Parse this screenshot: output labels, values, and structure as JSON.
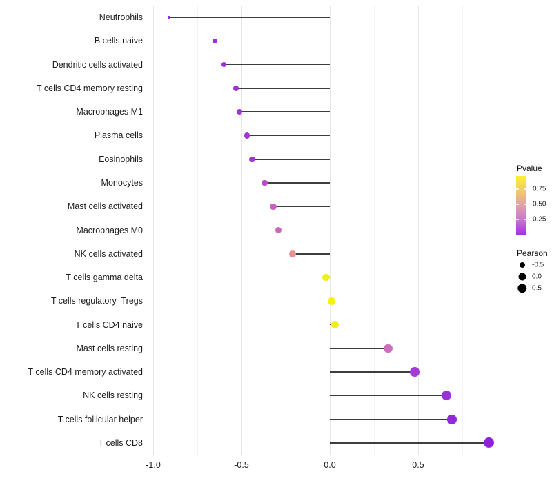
{
  "chart_data": {
    "type": "scatter",
    "variant": "lollipop",
    "title": "",
    "xlabel": "",
    "ylabel": "",
    "xlim": [
      -1.005,
      0.99
    ],
    "grid": "vertical-only",
    "colors": {
      "stem": "#3d3d3d",
      "grid_major": "#e7e7e7",
      "grid_minor": "#f3f3f3",
      "legend_dot": "#000000"
    },
    "x_ticks": [
      {
        "label": "-1.0",
        "value": -1.0
      },
      {
        "label": "-0.5",
        "value": -0.5
      },
      {
        "label": "0.0",
        "value": 0.0
      },
      {
        "label": "0.5",
        "value": 0.5
      }
    ],
    "x_minor": [
      -0.75,
      -0.25,
      0.25,
      0.75
    ],
    "categories": [
      "Neutrophils",
      "B cells naive",
      "Dendritic cells activated",
      "T cells CD4 memory resting",
      "Macrophages M1",
      "Plasma cells",
      "Eosinophils",
      "Monocytes",
      "Mast cells activated",
      "Macrophages M0",
      "NK cells activated",
      "T cells gamma delta",
      "T cells regulatory  Tregs",
      "T cells CD4 naive",
      "Mast cells resting",
      "T cells CD4 memory activated",
      "NK cells resting",
      "T cells follicular helper",
      "T cells CD8"
    ],
    "points": [
      {
        "label": "Neutrophils",
        "pearson": -0.91,
        "color": "#8e2bd1"
      },
      {
        "label": "B cells naive",
        "pearson": -0.65,
        "color": "#9b2fd6"
      },
      {
        "label": "Dendritic cells activated",
        "pearson": -0.6,
        "color": "#9c30d4"
      },
      {
        "label": "T cells CD4 memory resting",
        "pearson": -0.53,
        "color": "#9d33d4"
      },
      {
        "label": "Macrophages M1",
        "pearson": -0.51,
        "color": "#9f35d3"
      },
      {
        "label": "Plasma cells",
        "pearson": -0.47,
        "color": "#a137d2"
      },
      {
        "label": "Eosinophils",
        "pearson": -0.44,
        "color": "#a636d2"
      },
      {
        "label": "Monocytes",
        "pearson": -0.37,
        "color": "#b94cc8"
      },
      {
        "label": "Mast cells activated",
        "pearson": -0.32,
        "color": "#c863bd"
      },
      {
        "label": "Macrophages M0",
        "pearson": -0.29,
        "color": "#cb68b6"
      },
      {
        "label": "NK cells activated",
        "pearson": -0.21,
        "color": "#e89391"
      },
      {
        "label": "T cells gamma delta",
        "pearson": -0.02,
        "color": "#f2ee19"
      },
      {
        "label": "T cells regulatory  Tregs",
        "pearson": 0.01,
        "color": "#f6f30d"
      },
      {
        "label": "T cells CD4 naive",
        "pearson": 0.03,
        "color": "#f2ee19"
      },
      {
        "label": "Mast cells resting",
        "pearson": 0.33,
        "color": "#cc70be"
      },
      {
        "label": "T cells CD4 memory activated",
        "pearson": 0.48,
        "color": "#a43bd8"
      },
      {
        "label": "NK cells resting",
        "pearson": 0.66,
        "color": "#9b2fd9"
      },
      {
        "label": "T cells follicular helper",
        "pearson": 0.69,
        "color": "#9229d8"
      },
      {
        "label": "T cells CD8",
        "pearson": 0.9,
        "color": "#8f21dc"
      }
    ],
    "legend": {
      "pvalue": {
        "title": "Pvalue",
        "domain": [
          0,
          0.97
        ],
        "gradient_top_to_bottom": [
          "#fcf329",
          "#f2c96f",
          "#e2a0a8",
          "#c977d0",
          "#a130e8"
        ],
        "ticks": [
          {
            "label": "0.75",
            "value": 0.75
          },
          {
            "label": "0.50",
            "value": 0.5
          },
          {
            "label": "0.25",
            "value": 0.25
          }
        ]
      },
      "pearson": {
        "title": "Pearson",
        "items": [
          {
            "label": "-0.5",
            "value": -0.5
          },
          {
            "label": "0.0",
            "value": 0.0
          },
          {
            "label": "0.5",
            "value": 0.5
          }
        ]
      }
    }
  }
}
